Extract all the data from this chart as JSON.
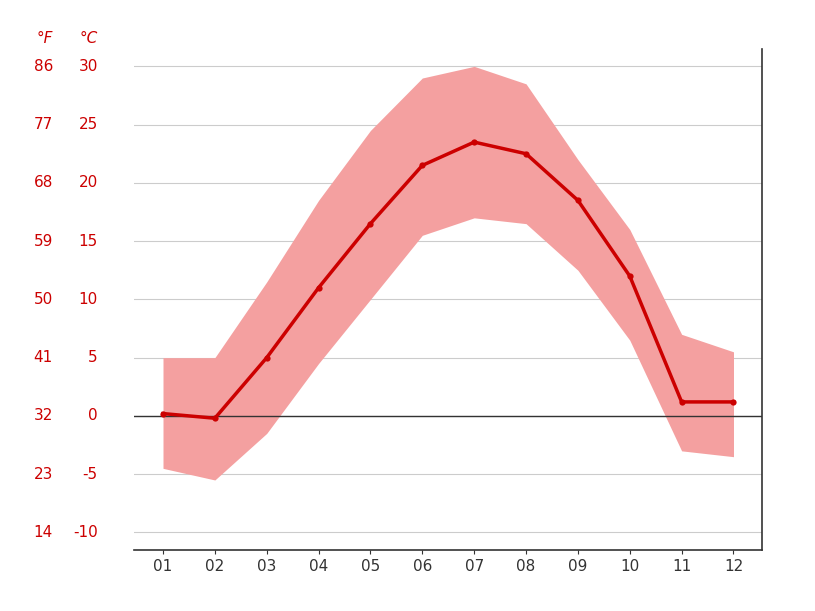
{
  "months": [
    1,
    2,
    3,
    4,
    5,
    6,
    7,
    8,
    9,
    10,
    11,
    12
  ],
  "month_labels": [
    "01",
    "02",
    "03",
    "04",
    "05",
    "06",
    "07",
    "08",
    "09",
    "10",
    "11",
    "12"
  ],
  "mean_c": [
    0.2,
    -0.2,
    5.0,
    11.0,
    16.5,
    21.5,
    23.5,
    22.5,
    18.5,
    12.0,
    1.2,
    1.2
  ],
  "max_c": [
    5.0,
    5.0,
    11.5,
    18.5,
    24.5,
    29.0,
    30.0,
    28.5,
    22.0,
    16.0,
    7.0,
    5.5
  ],
  "min_c": [
    -4.5,
    -5.5,
    -1.5,
    4.5,
    10.0,
    15.5,
    17.0,
    16.5,
    12.5,
    6.5,
    -3.0,
    -3.5
  ],
  "yticks_c": [
    -10,
    -5,
    0,
    5,
    10,
    15,
    20,
    25,
    30
  ],
  "yticks_f": [
    14,
    23,
    32,
    41,
    50,
    59,
    68,
    77,
    86
  ],
  "ylim_c": [
    -11.5,
    31.5
  ],
  "xlim": [
    0.45,
    12.55
  ],
  "line_color": "#cc0000",
  "band_color": "#f4a0a0",
  "zero_line_color": "#333333",
  "grid_color": "#cccccc",
  "label_color": "#cc0000",
  "background_color": "#ffffff",
  "label_f": "°F",
  "label_c": "°C",
  "figsize": [
    8.15,
    6.11
  ],
  "dpi": 100
}
